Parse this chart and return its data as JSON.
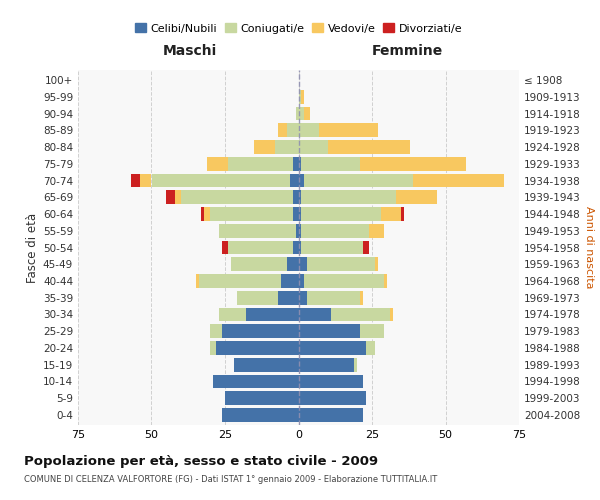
{
  "age_groups": [
    "0-4",
    "5-9",
    "10-14",
    "15-19",
    "20-24",
    "25-29",
    "30-34",
    "35-39",
    "40-44",
    "45-49",
    "50-54",
    "55-59",
    "60-64",
    "65-69",
    "70-74",
    "75-79",
    "80-84",
    "85-89",
    "90-94",
    "95-99",
    "100+"
  ],
  "birth_years": [
    "2004-2008",
    "1999-2003",
    "1994-1998",
    "1989-1993",
    "1984-1988",
    "1979-1983",
    "1974-1978",
    "1969-1973",
    "1964-1968",
    "1959-1963",
    "1954-1958",
    "1949-1953",
    "1944-1948",
    "1939-1943",
    "1934-1938",
    "1929-1933",
    "1924-1928",
    "1919-1923",
    "1914-1918",
    "1909-1913",
    "≤ 1908"
  ],
  "males": {
    "celibi": [
      26,
      25,
      29,
      22,
      28,
      26,
      18,
      7,
      6,
      4,
      2,
      1,
      2,
      2,
      3,
      2,
      0,
      0,
      0,
      0,
      0
    ],
    "coniugati": [
      0,
      0,
      0,
      0,
      2,
      4,
      9,
      14,
      28,
      19,
      22,
      26,
      28,
      38,
      47,
      22,
      8,
      4,
      1,
      0,
      0
    ],
    "vedovi": [
      0,
      0,
      0,
      0,
      0,
      0,
      0,
      0,
      1,
      0,
      0,
      0,
      2,
      2,
      4,
      7,
      7,
      3,
      0,
      0,
      0
    ],
    "divorziati": [
      0,
      0,
      0,
      0,
      0,
      0,
      0,
      0,
      0,
      0,
      2,
      0,
      1,
      3,
      3,
      0,
      0,
      0,
      0,
      0,
      0
    ]
  },
  "females": {
    "nubili": [
      22,
      23,
      22,
      19,
      23,
      21,
      11,
      3,
      2,
      3,
      1,
      1,
      1,
      1,
      2,
      1,
      0,
      0,
      0,
      0,
      0
    ],
    "coniugate": [
      0,
      0,
      0,
      1,
      3,
      8,
      20,
      18,
      27,
      23,
      21,
      23,
      27,
      32,
      37,
      20,
      10,
      7,
      2,
      1,
      0
    ],
    "vedove": [
      0,
      0,
      0,
      0,
      0,
      0,
      1,
      1,
      1,
      1,
      0,
      5,
      7,
      14,
      31,
      36,
      28,
      20,
      2,
      1,
      0
    ],
    "divorziate": [
      0,
      0,
      0,
      0,
      0,
      0,
      0,
      0,
      0,
      0,
      2,
      0,
      1,
      0,
      0,
      0,
      0,
      0,
      0,
      0,
      0
    ]
  },
  "colors": {
    "celibi": "#4472a8",
    "coniugati": "#c8d8a0",
    "vedovi": "#f8c860",
    "divorziati": "#cc2020"
  },
  "title": "Popolazione per età, sesso e stato civile - 2009",
  "subtitle": "COMUNE DI CELENZA VALFORTORE (FG) - Dati ISTAT 1° gennaio 2009 - Elaborazione TUTTITALIA.IT",
  "xlabel_left": "Maschi",
  "xlabel_right": "Femmine",
  "ylabel_left": "Fasce di età",
  "ylabel_right": "Anni di nascita",
  "legend_labels": [
    "Celibi/Nubili",
    "Coniugati/e",
    "Vedovi/e",
    "Divorziati/e"
  ],
  "background_color": "#ffffff",
  "plot_bg_color": "#f8f8f8",
  "grid_color": "#cccccc"
}
